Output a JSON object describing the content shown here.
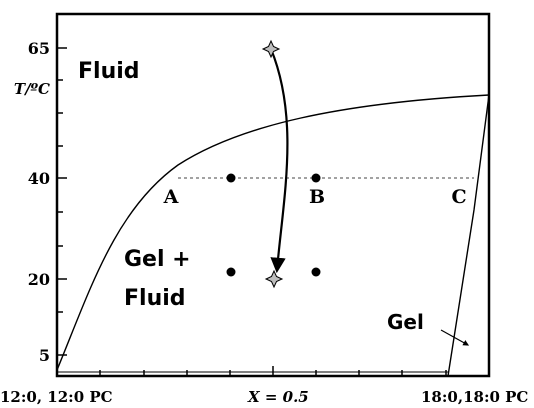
{
  "axis": {
    "y_label": "T/ºC",
    "y_ticks": [
      "65",
      "40",
      "20",
      "5"
    ],
    "x_left": "12:0, 12:0 PC",
    "x_mid": "X = 0.5",
    "x_right": "18:0,18:0 PC"
  },
  "regions": {
    "fluid": "Fluid",
    "gel_fluid_line1": "Gel +",
    "gel_fluid_line2": "Fluid",
    "gel": "Gel"
  },
  "points": {
    "A": "A",
    "B": "B",
    "C": "C"
  }
}
